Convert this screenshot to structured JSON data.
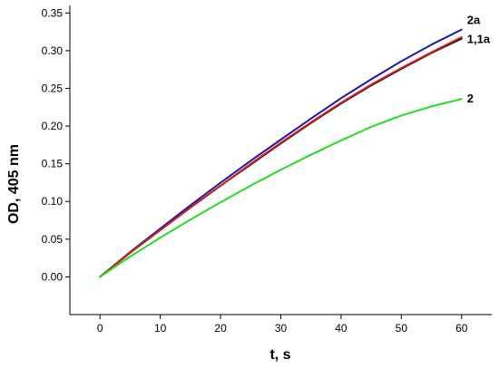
{
  "chart_data": {
    "type": "line",
    "title": "",
    "xlabel": "t, s",
    "ylabel": "OD, 405 nm",
    "xlim": [
      -5,
      65
    ],
    "ylim": [
      -0.05,
      0.36
    ],
    "xticks": [
      0,
      10,
      20,
      30,
      40,
      50,
      60
    ],
    "yticks": [
      0.0,
      0.05,
      0.1,
      0.15,
      0.2,
      0.25,
      0.3,
      0.35
    ],
    "ytick_labels": [
      "0.00",
      "0.05",
      "0.10",
      "0.15",
      "0.20",
      "0.25",
      "0.30",
      "0.35"
    ],
    "xtick_labels": [
      "0",
      "10",
      "20",
      "30",
      "40",
      "50",
      "60"
    ],
    "grid": false,
    "legend": "none",
    "x": [
      0,
      5,
      10,
      15,
      20,
      25,
      30,
      35,
      40,
      45,
      50,
      55,
      60
    ],
    "series": [
      {
        "name": "2a",
        "color": "#1a1aa6",
        "values": [
          0.0,
          0.033,
          0.064,
          0.095,
          0.125,
          0.154,
          0.182,
          0.21,
          0.237,
          0.262,
          0.286,
          0.308,
          0.328
        ]
      },
      {
        "name": "1",
        "color": "#111111",
        "values": [
          0.0,
          0.032,
          0.062,
          0.092,
          0.121,
          0.149,
          0.177,
          0.204,
          0.23,
          0.254,
          0.276,
          0.297,
          0.316
        ]
      },
      {
        "name": "1a",
        "color": "#d42020",
        "values": [
          0.0,
          0.032,
          0.062,
          0.092,
          0.121,
          0.15,
          0.178,
          0.205,
          0.231,
          0.255,
          0.277,
          0.298,
          0.318
        ]
      },
      {
        "name": "2",
        "color": "#22dd22",
        "values": [
          0.0,
          0.027,
          0.052,
          0.076,
          0.099,
          0.121,
          0.142,
          0.162,
          0.181,
          0.199,
          0.214,
          0.226,
          0.236
        ]
      }
    ],
    "curve_labels": [
      {
        "text": "2a",
        "x": 60,
        "y": 0.34
      },
      {
        "text": "1,1a",
        "x": 60,
        "y": 0.315
      },
      {
        "text": "2",
        "x": 60,
        "y": 0.236
      }
    ]
  }
}
